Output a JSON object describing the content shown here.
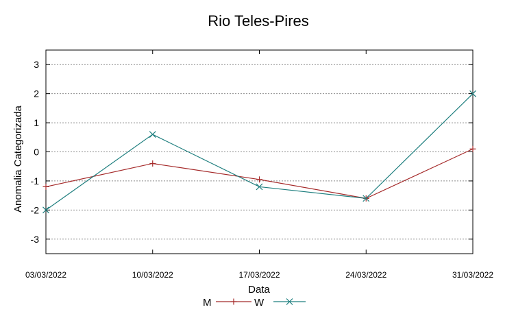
{
  "chart_data": {
    "type": "line",
    "title": "Rio Teles-Pires",
    "xlabel": "Data",
    "ylabel": "Anomalia Categorizada",
    "categories": [
      "03/03/2022",
      "10/03/2022",
      "17/03/2022",
      "24/03/2022",
      "31/03/2022"
    ],
    "yticks": [
      "-3",
      "-2",
      "-1",
      "0",
      "1",
      "2",
      "3"
    ],
    "ylim": [
      -3.5,
      3.5
    ],
    "grid": true,
    "legend_position": "bottom",
    "series": [
      {
        "name": "M",
        "values": [
          -1.2,
          -0.4,
          -0.95,
          -1.6,
          0.1
        ],
        "color": "#a52a2a",
        "marker": "plus"
      },
      {
        "name": "W",
        "values": [
          -2.0,
          0.6,
          -1.2,
          -1.6,
          2.0
        ],
        "color": "#1f7f7f",
        "marker": "cross"
      }
    ]
  }
}
